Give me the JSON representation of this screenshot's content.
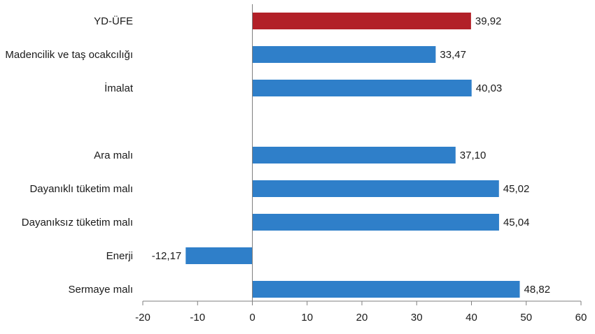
{
  "chart_data": {
    "type": "bar",
    "orientation": "horizontal",
    "categories": [
      "YD-ÜFE",
      "Madencilik ve taş ocakcılığı",
      "İmalat",
      "",
      "Ara malı",
      "Dayanıklı tüketim malı",
      "Dayanıksız tüketim malı",
      "Enerji",
      "Sermaye malı"
    ],
    "values": [
      39.92,
      33.47,
      40.03,
      null,
      37.1,
      45.02,
      45.04,
      -12.17,
      48.82
    ],
    "value_labels": [
      "39,92",
      "33,47",
      "40,03",
      "",
      "37,10",
      "45,02",
      "45,04",
      "-12,17",
      "48,82"
    ],
    "bar_colors": [
      "#b22028",
      "#2f7fc9",
      "#2f7fc9",
      "#2f7fc9",
      "#2f7fc9",
      "#2f7fc9",
      "#2f7fc9",
      "#2f7fc9",
      "#2f7fc9"
    ],
    "xlim": [
      -20,
      60
    ],
    "xticks": [
      -20,
      -10,
      0,
      10,
      20,
      30,
      40,
      50,
      60
    ],
    "xtick_labels": [
      "-20",
      "-10",
      "0",
      "10",
      "20",
      "30",
      "40",
      "50",
      "60"
    ],
    "grid": false,
    "legend": "none",
    "title": "",
    "xlabel": "",
    "ylabel": ""
  }
}
